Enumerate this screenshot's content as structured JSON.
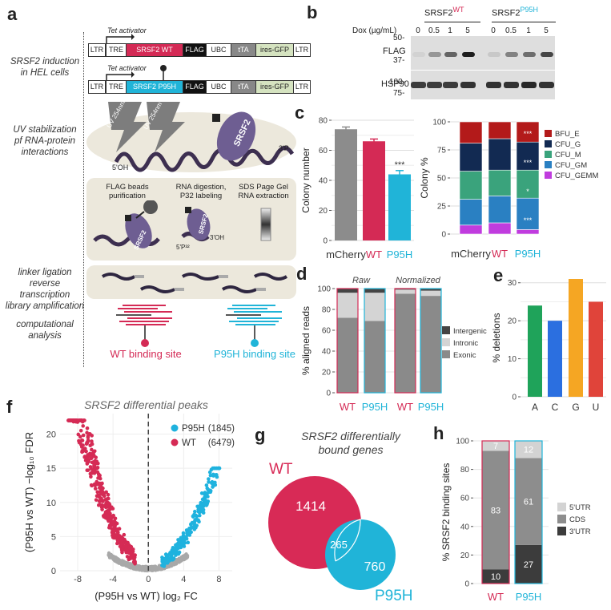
{
  "panels": {
    "a": "a",
    "b": "b",
    "c": "c",
    "d": "d",
    "e": "e",
    "f": "f",
    "g": "g",
    "h": "h"
  },
  "a": {
    "labels": [
      "SRSF2 induction\nin HEL cells",
      "UV stabilization\npf RNA-protein\ninteractions",
      "linker ligation\nreverse transcription\nlibrary amplification",
      "computational\nanalysis"
    ],
    "construct1": [
      "LTR",
      "TRE",
      "SRSF2 WT",
      "FLAG",
      "UBC",
      "tTA",
      "ires-GFP",
      "LTR"
    ],
    "construct2": [
      "LTR",
      "TRE",
      "SRSF2 P95H",
      "FLAG",
      "UBC",
      "tTA",
      "ires-GFP",
      "LTR"
    ],
    "tet_activator": "Tet activator",
    "uv": "UV 254nm",
    "protein": "SRSF2",
    "oh5": "5'OH",
    "p3": "3'P",
    "steps": [
      "FLAG  beads\npurification",
      "RNA digestion,\nP32 labeling",
      "SDS Page Gel\nRNA extraction"
    ],
    "p5": "5'P³²",
    "oh3": "3'OH",
    "wt_site": "WT binding site",
    "p95h_site": "P95H binding site"
  },
  "b": {
    "wt_header": "SRSF2",
    "wt_sup": "WT",
    "mut_header": "SRSF2",
    "mut_sup": "P95H",
    "dox_label": "Dox (µg/mL)",
    "doses": [
      "0",
      "0.5",
      "1",
      "5",
      "0",
      "0.5",
      "1",
      "5"
    ],
    "rows": [
      {
        "name": "FLAG",
        "ladder": [
          "50-",
          "37-"
        ],
        "intensity": [
          0.05,
          0.35,
          0.6,
          0.95,
          0.1,
          0.45,
          0.55,
          0.75
        ]
      },
      {
        "name": "HSP90",
        "ladder": [
          "100-",
          "75-"
        ],
        "intensity": [
          0.8,
          0.8,
          0.8,
          0.85,
          0.85,
          0.85,
          0.9,
          0.85
        ]
      }
    ]
  },
  "chart_data": [
    {
      "id": "c-left",
      "type": "bar",
      "categories": [
        "mCherry",
        "WT",
        "P95H"
      ],
      "values": [
        74,
        66,
        44
      ],
      "errors": [
        1.5,
        1.5,
        2.5
      ],
      "colors": [
        "#8c8c8c",
        "#d42a55",
        "#20b4d8"
      ],
      "ylabel": "Colony number",
      "ylim": [
        0,
        80
      ],
      "yticks": [
        0,
        20,
        40,
        60,
        80
      ],
      "annotations": [
        {
          "category": "P95H",
          "text": "***"
        }
      ]
    },
    {
      "id": "c-right",
      "type": "bar",
      "stacked": true,
      "categories": [
        "mCherry",
        "WT",
        "P95H"
      ],
      "series": [
        {
          "name": "CFU_GEMM",
          "color": "#c03cde",
          "values": [
            8,
            10,
            4
          ]
        },
        {
          "name": "CFU_GM",
          "color": "#2a80c2",
          "values": [
            23,
            24,
            28
          ]
        },
        {
          "name": "CFU_M",
          "color": "#3aa37c",
          "values": [
            25,
            23,
            25
          ]
        },
        {
          "name": "CFU_G",
          "color": "#122a52",
          "values": [
            25,
            28,
            25
          ]
        },
        {
          "name": "BFU_E",
          "color": "#b31a1a",
          "values": [
            19,
            15,
            18
          ]
        }
      ],
      "legend_order": [
        "BFU_E",
        "CFU_G",
        "CFU_M",
        "CFU_GM",
        "CFU_GEMM"
      ],
      "ylabel": "Colony %",
      "ylim": [
        0,
        100
      ],
      "yticks": [
        0,
        25,
        50,
        75,
        100
      ],
      "annotations": [
        "***",
        "***",
        "*",
        "***"
      ]
    },
    {
      "id": "d",
      "type": "bar",
      "stacked": true,
      "categories": [
        "WT",
        "P95H",
        "WT",
        "P95H"
      ],
      "groups": [
        "Raw",
        "Normalized"
      ],
      "series": [
        {
          "name": "Exonic",
          "color": "#8a8a8a",
          "values": [
            72,
            69,
            95,
            93
          ]
        },
        {
          "name": "Intronic",
          "color": "#d4d4d4",
          "values": [
            24,
            27,
            4,
            5
          ]
        },
        {
          "name": "Intergenic",
          "color": "#444444",
          "values": [
            4,
            4,
            1,
            2
          ]
        }
      ],
      "legend_order": [
        "Intergenic",
        "Intronic",
        "Exonic"
      ],
      "ylabel": "% aligned reads",
      "ylim": [
        0,
        100
      ],
      "yticks": [
        0,
        20,
        40,
        60,
        80,
        100
      ]
    },
    {
      "id": "e",
      "type": "bar",
      "categories": [
        "A",
        "C",
        "G",
        "U"
      ],
      "values": [
        24,
        20,
        31,
        25
      ],
      "colors": [
        "#1fa35a",
        "#2b6fe0",
        "#f5a623",
        "#e0443a"
      ],
      "ylabel": "% deletions",
      "ylim": [
        0,
        31
      ],
      "yticks": [
        0,
        10,
        20,
        30
      ]
    },
    {
      "id": "f",
      "type": "scatter",
      "title": "SRSF2 differential peaks",
      "xlabel": "(P95H vs WT) log₂ FC",
      "ylabel": "(P95H vs WT) −log₁₀ FDR",
      "xlim": [
        -10,
        9.5
      ],
      "ylim": [
        0,
        23
      ],
      "xticks": [
        -8,
        -4,
        0,
        4,
        8
      ],
      "yticks": [
        0,
        5,
        10,
        15,
        20
      ],
      "series": [
        {
          "name": "P95H",
          "count": "(1845)",
          "color": "#1fb2de"
        },
        {
          "name": "WT",
          "count": "(6479)",
          "color": "#d52b55"
        }
      ]
    },
    {
      "id": "g",
      "type": "venn",
      "title": "SRSF2 differentially\nbound genes",
      "sets": [
        {
          "name": "WT",
          "only": 1414,
          "color": "#d82a56"
        },
        {
          "name": "P95H",
          "only": 760,
          "color": "#20b4d8"
        }
      ],
      "overlap": 265
    },
    {
      "id": "h",
      "type": "bar",
      "stacked": true,
      "categories": [
        "WT",
        "P95H"
      ],
      "series": [
        {
          "name": "3'UTR",
          "color": "#3c3c3c",
          "values": [
            10,
            27
          ]
        },
        {
          "name": "CDS",
          "color": "#8d8d8d",
          "values": [
            83,
            61
          ]
        },
        {
          "name": "5'UTR",
          "color": "#d3d3d3",
          "values": [
            7,
            12
          ]
        }
      ],
      "legend_order": [
        "5'UTR",
        "CDS",
        "3'UTR"
      ],
      "ylabel": "% SRSF2 binding sites",
      "ylim": [
        0,
        100
      ],
      "yticks": [
        0,
        20,
        40,
        60,
        80,
        100
      ]
    }
  ]
}
